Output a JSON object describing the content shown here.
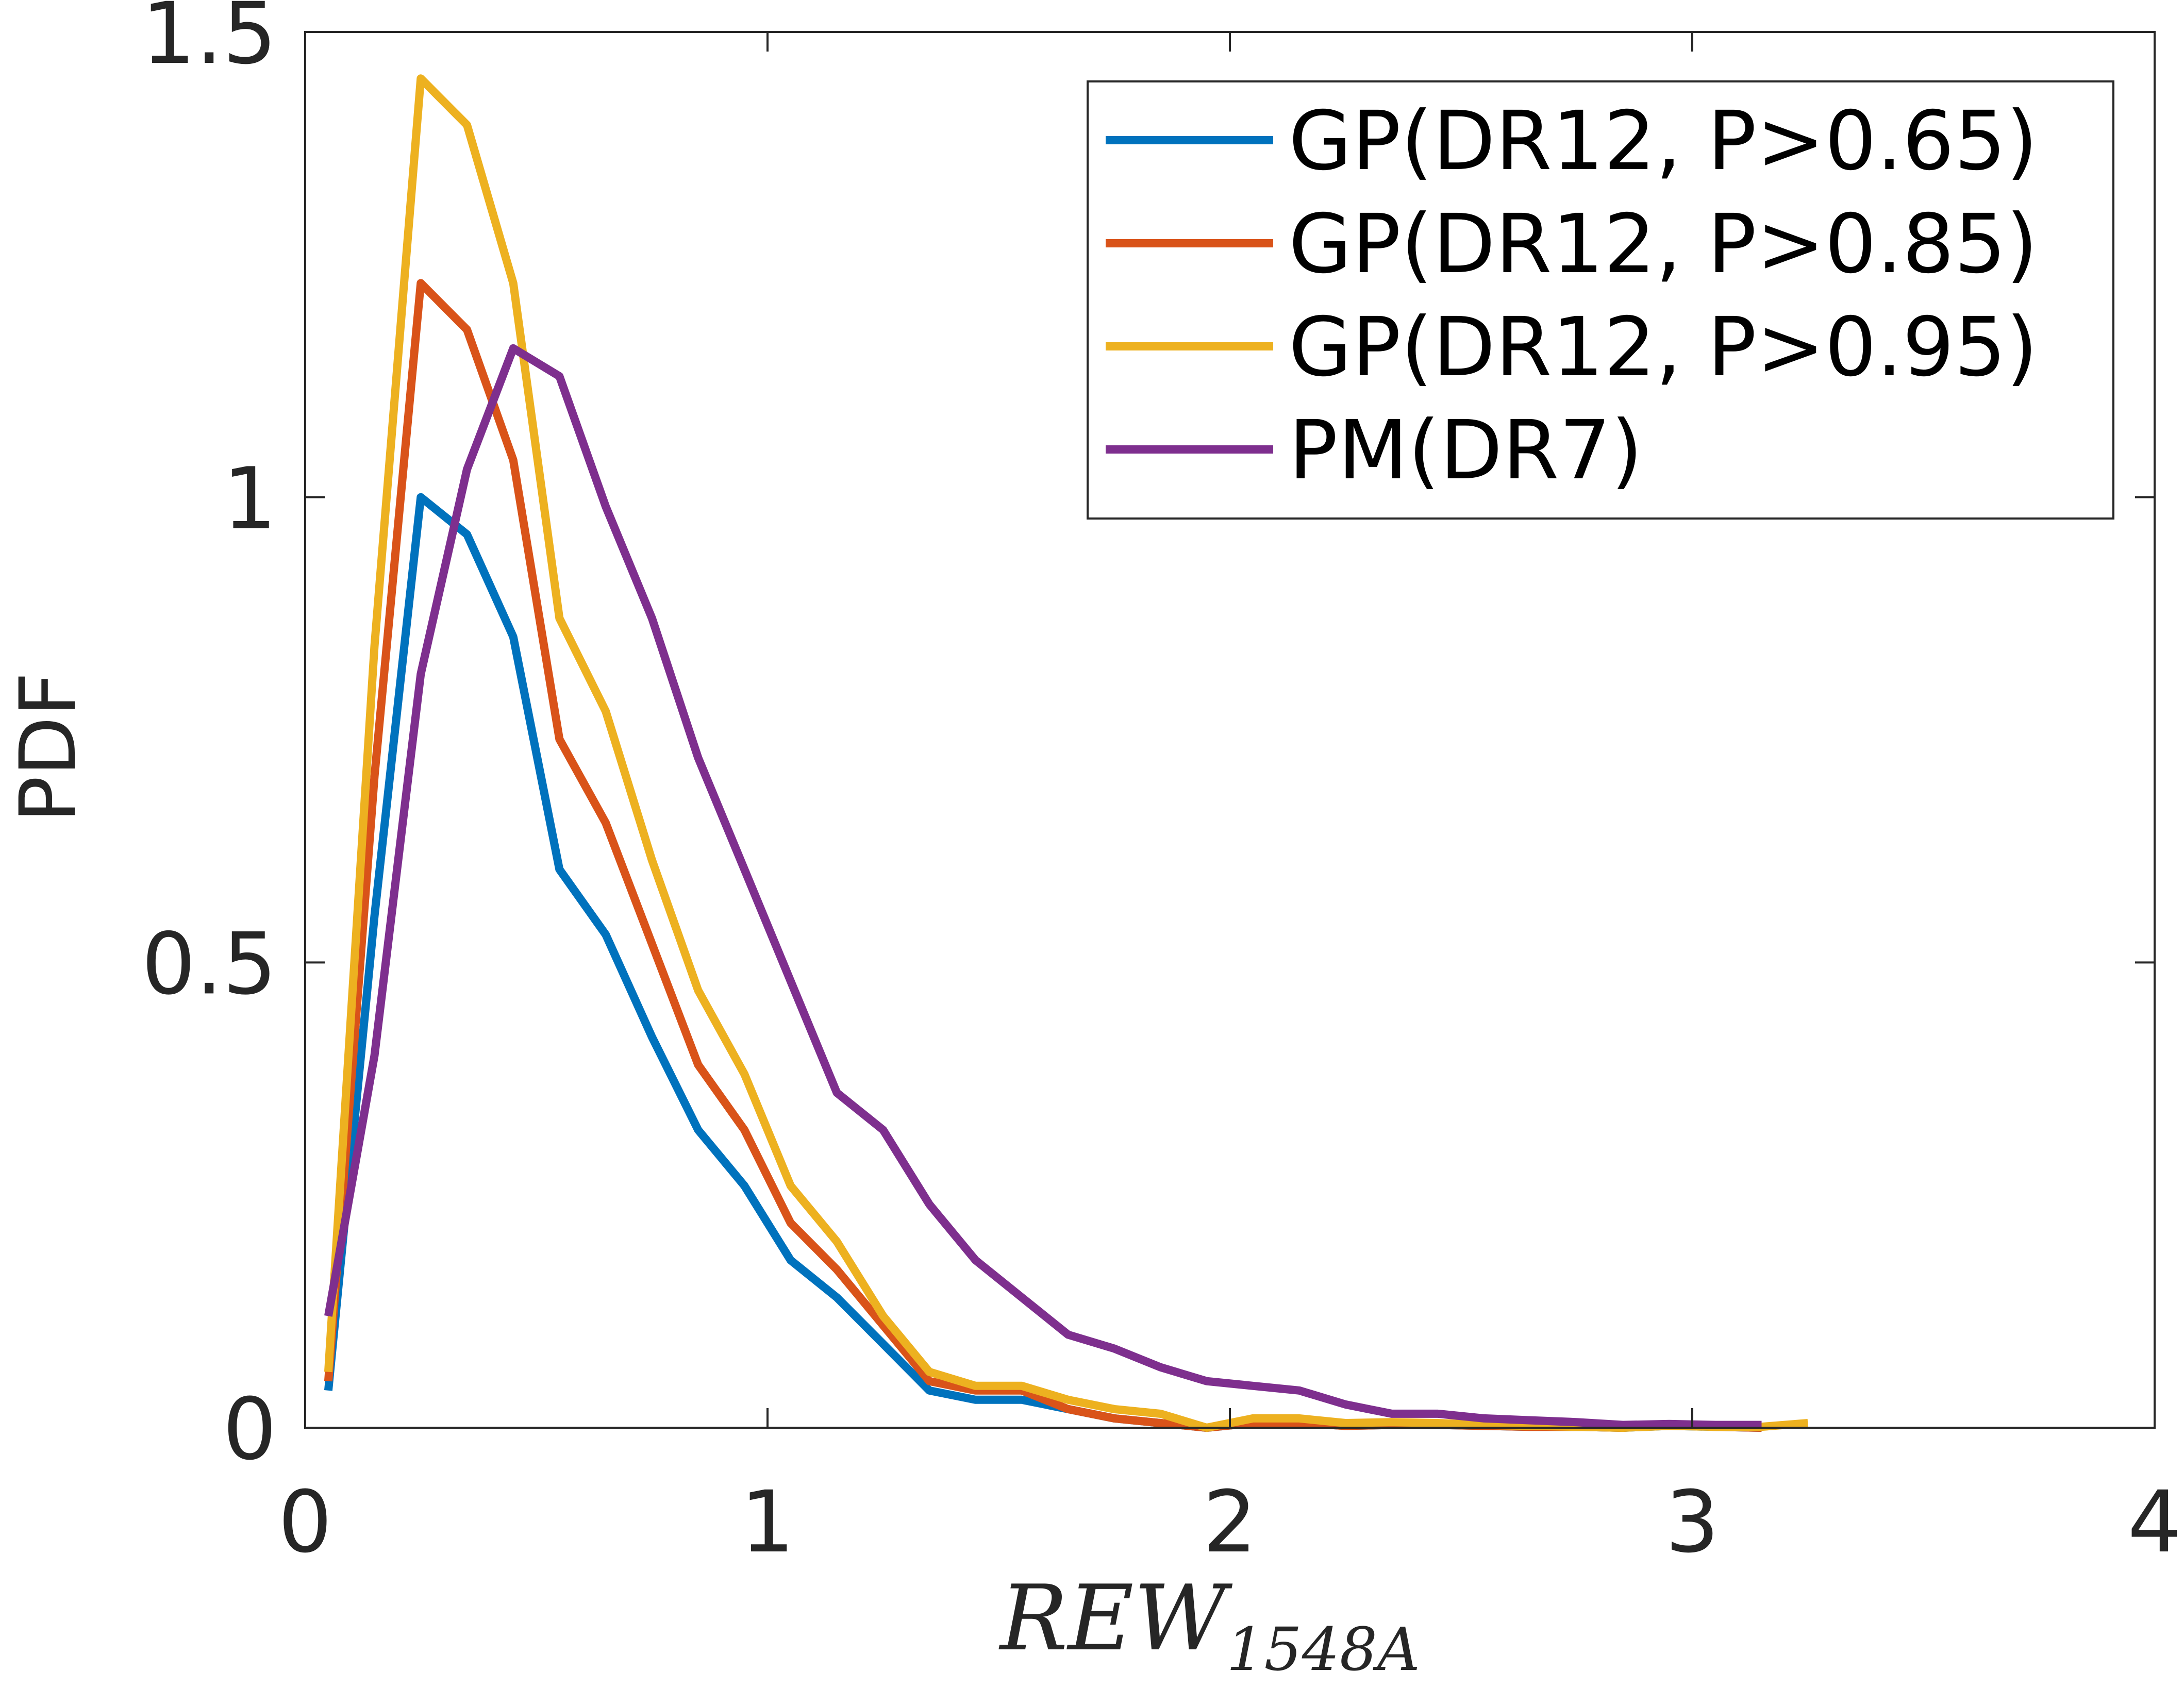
{
  "chart_data": {
    "type": "line",
    "ylabel": "PDF",
    "xlabel": {
      "main": "REW",
      "subscript": "1548A"
    },
    "xlim": [
      0,
      4
    ],
    "ylim": [
      0,
      1.5
    ],
    "xticks": [
      0,
      1,
      2,
      3,
      4
    ],
    "xtick_labels": [
      "0",
      "1",
      "2",
      "3",
      "4"
    ],
    "yticks": [
      0,
      0.5,
      1,
      1.5
    ],
    "ytick_labels": [
      "0",
      "0.5",
      "1",
      "1.5"
    ],
    "grid": false,
    "legend_position": "top-right",
    "series": [
      {
        "name": "GP(DR12, P>0.65)",
        "color": "#0072BD",
        "x": [
          0.05,
          0.15,
          0.25,
          0.35,
          0.45,
          0.55,
          0.65,
          0.75,
          0.85,
          0.95,
          1.05,
          1.15,
          1.25,
          1.35,
          1.45,
          1.55,
          1.65,
          1.75,
          1.85,
          1.95,
          2.05,
          2.15,
          2.25,
          2.35,
          2.45,
          2.55,
          2.65,
          2.75,
          2.85,
          2.95,
          3.05,
          3.15
        ],
        "y": [
          0.04,
          0.55,
          1.0,
          0.96,
          0.85,
          0.6,
          0.53,
          0.42,
          0.32,
          0.26,
          0.18,
          0.14,
          0.09,
          0.04,
          0.03,
          0.03,
          0.02,
          0.01,
          0.005,
          0.0,
          0.005,
          0.005,
          0.002,
          0.003,
          0.003,
          0.002,
          0.001,
          0.001,
          0.0,
          0.002,
          0.001,
          0.0
        ]
      },
      {
        "name": "GP(DR12, P>0.85)",
        "color": "#D95319",
        "x": [
          0.05,
          0.15,
          0.25,
          0.35,
          0.45,
          0.55,
          0.65,
          0.75,
          0.85,
          0.95,
          1.05,
          1.15,
          1.25,
          1.35,
          1.45,
          1.55,
          1.65,
          1.75,
          1.85,
          1.95,
          2.05,
          2.15,
          2.25,
          2.35,
          2.45,
          2.55,
          2.65,
          2.75,
          2.85,
          2.95,
          3.05,
          3.15
        ],
        "y": [
          0.05,
          0.7,
          1.23,
          1.18,
          1.04,
          0.74,
          0.65,
          0.52,
          0.39,
          0.32,
          0.22,
          0.17,
          0.11,
          0.05,
          0.04,
          0.04,
          0.02,
          0.01,
          0.005,
          0.0,
          0.005,
          0.005,
          0.002,
          0.003,
          0.003,
          0.002,
          0.001,
          0.001,
          0.0,
          0.003,
          0.001,
          0.0
        ]
      },
      {
        "name": "GP(DR12, P>0.95)",
        "color": "#EDB120",
        "x": [
          0.05,
          0.15,
          0.25,
          0.35,
          0.45,
          0.55,
          0.65,
          0.75,
          0.85,
          0.95,
          1.05,
          1.15,
          1.25,
          1.35,
          1.45,
          1.55,
          1.65,
          1.75,
          1.85,
          1.95,
          2.05,
          2.15,
          2.25,
          2.35,
          2.45,
          2.55,
          2.65,
          2.75,
          2.85,
          2.95,
          3.05,
          3.15,
          3.25
        ],
        "y": [
          0.06,
          0.84,
          1.45,
          1.4,
          1.23,
          0.87,
          0.77,
          0.61,
          0.47,
          0.38,
          0.26,
          0.2,
          0.12,
          0.06,
          0.045,
          0.045,
          0.03,
          0.02,
          0.015,
          0.0,
          0.01,
          0.01,
          0.005,
          0.006,
          0.005,
          0.003,
          0.002,
          0.001,
          0.0,
          0.002,
          0.001,
          0.001,
          0.005
        ]
      },
      {
        "name": "PM(DR7)",
        "color": "#7E2F8E",
        "x": [
          0.05,
          0.15,
          0.25,
          0.35,
          0.45,
          0.55,
          0.65,
          0.75,
          0.85,
          0.95,
          1.05,
          1.15,
          1.25,
          1.35,
          1.45,
          1.55,
          1.65,
          1.75,
          1.85,
          1.95,
          2.05,
          2.15,
          2.25,
          2.35,
          2.45,
          2.55,
          2.65,
          2.75,
          2.85,
          2.95,
          3.05,
          3.15
        ],
        "y": [
          0.12,
          0.4,
          0.81,
          1.03,
          1.16,
          1.13,
          0.99,
          0.87,
          0.72,
          0.6,
          0.48,
          0.36,
          0.32,
          0.24,
          0.18,
          0.14,
          0.1,
          0.085,
          0.065,
          0.05,
          0.045,
          0.04,
          0.025,
          0.015,
          0.015,
          0.01,
          0.008,
          0.006,
          0.003,
          0.004,
          0.003,
          0.003
        ]
      }
    ]
  }
}
